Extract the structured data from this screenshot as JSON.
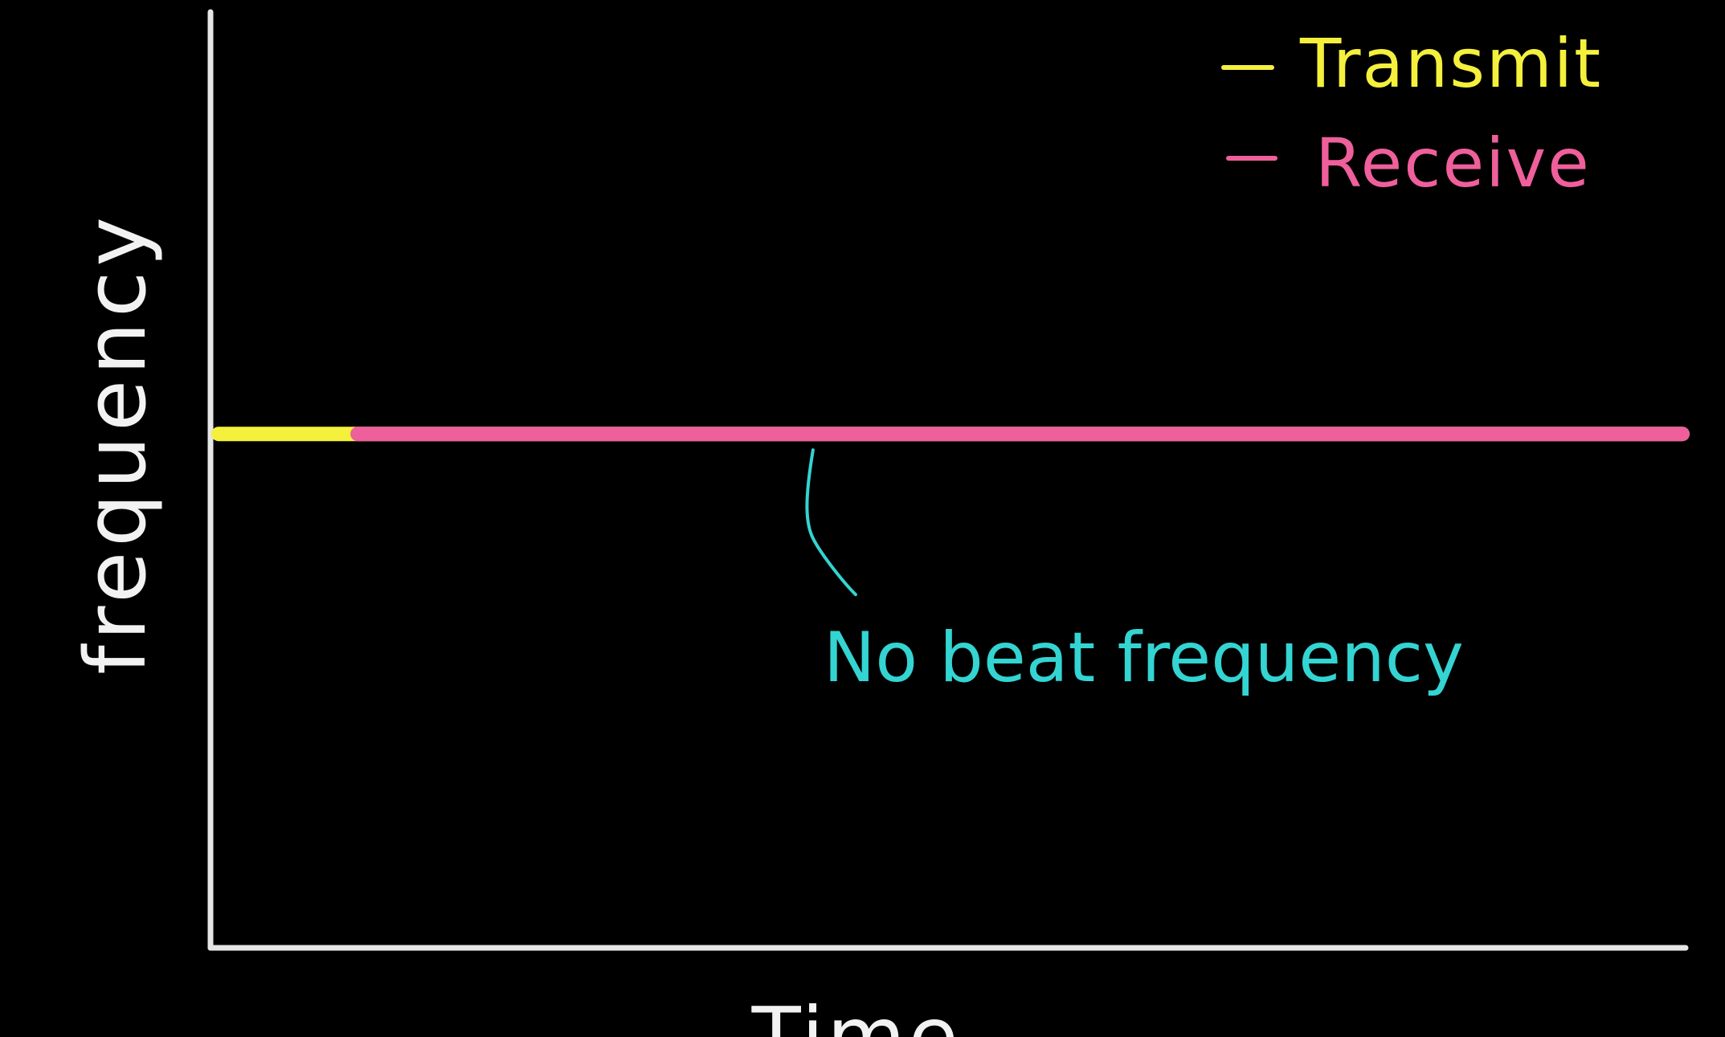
{
  "chart_data": {
    "type": "line",
    "title": "",
    "xlabel": "Time",
    "ylabel": "frequency",
    "xlim": [
      0,
      100
    ],
    "ylim": [
      0,
      100
    ],
    "grid": false,
    "legend_position": "top-right",
    "series": [
      {
        "name": "Transmit",
        "color": "#f4f03c",
        "x": [
          0,
          100
        ],
        "y": [
          55,
          55
        ]
      },
      {
        "name": "Receive",
        "color": "#ee5f9b",
        "x": [
          9.5,
          100
        ],
        "y": [
          55,
          55
        ]
      }
    ],
    "annotations": [
      {
        "text": "No beat frequency",
        "color": "#33d4d2",
        "target_x": 40.5,
        "target_y": 55
      }
    ]
  },
  "colors": {
    "background": "#000000",
    "axis": "#e6e6e6",
    "axis_label": "#f2f2f2"
  }
}
